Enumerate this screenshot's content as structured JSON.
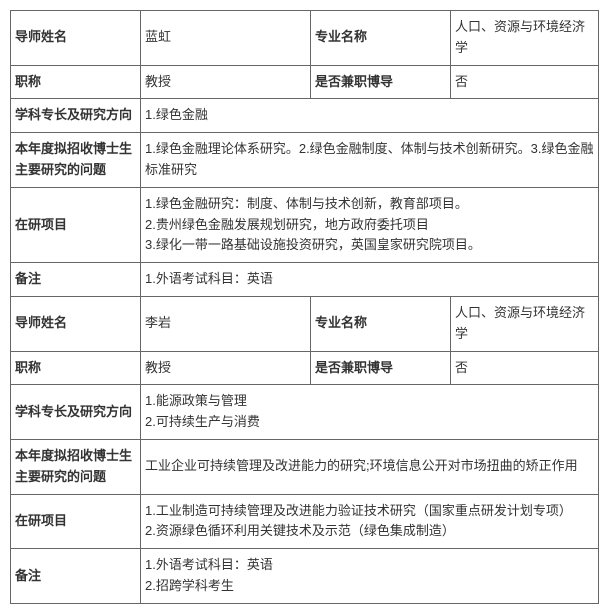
{
  "labels": {
    "supervisorName": "导师姓名",
    "major": "专业名称",
    "title": "职称",
    "parttime": "是否兼职博导",
    "specialty": "学科专长及研究方向",
    "topics": "本年度拟招收博士生主要研究的问题",
    "projects": "在研项目",
    "remark": "备注"
  },
  "rec1": {
    "name": "蓝虹",
    "major": "人口、资源与环境经济学",
    "title": "教授",
    "parttime": "否",
    "specialty": "1.绿色金融",
    "topics": "1.绿色金融理论体系研究。2.绿色金融制度、体制与技术创新研究。3.绿色金融标准研究",
    "projects": "1.绿色金融研究：制度、体制与技术创新，教育部项目。\n2.贵州绿色金融发展规划研究，地方政府委托项目\n3.绿化一带一路基础设施投资研究，英国皇家研究院项目。",
    "remark": "1.外语考试科目：英语"
  },
  "rec2": {
    "name": "李岩",
    "major": "人口、资源与环境经济学",
    "title": "教授",
    "parttime": "否",
    "specialty": "1.能源政策与管理\n2.可持续生产与消费",
    "topics": "工业企业可持续管理及改进能力的研究;环境信息公开对市场扭曲的矫正作用",
    "projects": "1.工业制造可持续管理及改进能力验证技术研究（国家重点研发计划专项）\n2.资源绿色循环利用关键技术及示范（绿色集成制造）",
    "remark": "1.外语考试科目：英语\n2.招跨学科考生"
  }
}
